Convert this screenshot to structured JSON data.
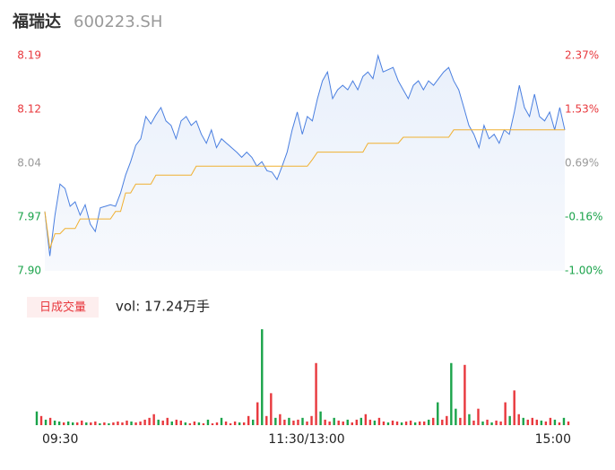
{
  "chart_data": {
    "type": "intraday",
    "title": "福瑞达",
    "subtitle": "600223.SH",
    "ylim": [
      7.9,
      8.19
    ],
    "yticks": [
      {
        "value": 8.19,
        "label": "8.19"
      },
      {
        "value": 8.1175,
        "label": "8.12"
      },
      {
        "value": 8.045,
        "label": "8.04"
      },
      {
        "value": 7.9725,
        "label": "7.97"
      },
      {
        "value": 7.9,
        "label": "7.90"
      }
    ],
    "ytick_colors": [
      "#e8383d",
      "#e8383d",
      "#999999",
      "#1aa34a",
      "#1aa34a"
    ],
    "y2lim": [
      -1.0,
      2.37
    ],
    "y2ticks": [
      {
        "value": 2.37,
        "label": "2.37%"
      },
      {
        "value": 1.5275,
        "label": "1.53%"
      },
      {
        "value": 0.685,
        "label": "0.69%"
      },
      {
        "value": -0.1575,
        "label": "-0.16%"
      },
      {
        "value": -1.0,
        "label": "-1.00%"
      }
    ],
    "xlim": [
      0,
      240
    ],
    "xticks": [
      {
        "value": 0,
        "label": "09:30"
      },
      {
        "value": 120,
        "label": "11:30/13:00"
      },
      {
        "value": 240,
        "label": "15:00"
      }
    ],
    "series": [
      {
        "name": "price",
        "color": "#4a7fe0",
        "values": [
          7.98,
          7.92,
          7.975,
          8.017,
          8.011,
          7.987,
          7.993,
          7.975,
          7.989,
          7.963,
          7.953,
          7.985,
          7.987,
          7.989,
          7.987,
          8.005,
          8.029,
          8.047,
          8.069,
          8.078,
          8.108,
          8.098,
          8.11,
          8.12,
          8.102,
          8.096,
          8.078,
          8.102,
          8.108,
          8.096,
          8.102,
          8.084,
          8.072,
          8.09,
          8.066,
          8.078,
          8.072,
          8.066,
          8.06,
          8.053,
          8.06,
          8.053,
          8.041,
          8.047,
          8.035,
          8.033,
          8.023,
          8.041,
          8.06,
          8.09,
          8.114,
          8.084,
          8.108,
          8.102,
          8.132,
          8.156,
          8.168,
          8.132,
          8.144,
          8.15,
          8.144,
          8.156,
          8.144,
          8.162,
          8.168,
          8.159,
          8.19,
          8.168,
          8.171,
          8.174,
          8.156,
          8.144,
          8.132,
          8.15,
          8.156,
          8.144,
          8.156,
          8.15,
          8.159,
          8.168,
          8.174,
          8.156,
          8.144,
          8.12,
          8.096,
          8.084,
          8.066,
          8.096,
          8.078,
          8.084,
          8.072,
          8.09,
          8.084,
          8.114,
          8.15,
          8.12,
          8.108,
          8.138,
          8.108,
          8.102,
          8.114,
          8.09,
          8.12,
          8.09
        ]
      },
      {
        "name": "average",
        "color": "#f0b030",
        "values": [
          7.98,
          7.93,
          7.95,
          7.95,
          7.957,
          7.957,
          7.957,
          7.97,
          7.97,
          7.97,
          7.97,
          7.97,
          7.97,
          7.97,
          7.98,
          7.98,
          8.005,
          8.005,
          8.017,
          8.017,
          8.017,
          8.017,
          8.029,
          8.029,
          8.029,
          8.029,
          8.029,
          8.029,
          8.029,
          8.029,
          8.041,
          8.041,
          8.041,
          8.041,
          8.041,
          8.041,
          8.041,
          8.041,
          8.041,
          8.041,
          8.041,
          8.041,
          8.041,
          8.041,
          8.041,
          8.041,
          8.041,
          8.041,
          8.041,
          8.041,
          8.041,
          8.041,
          8.041,
          8.05,
          8.06,
          8.06,
          8.06,
          8.06,
          8.06,
          8.06,
          8.06,
          8.06,
          8.06,
          8.06,
          8.072,
          8.072,
          8.072,
          8.072,
          8.072,
          8.072,
          8.072,
          8.08,
          8.08,
          8.08,
          8.08,
          8.08,
          8.08,
          8.08,
          8.08,
          8.08,
          8.08,
          8.09,
          8.09,
          8.09,
          8.09,
          8.09,
          8.09,
          8.09,
          8.09,
          8.09,
          8.09,
          8.09,
          8.09,
          8.09,
          8.09,
          8.09,
          8.09,
          8.09,
          8.09,
          8.09,
          8.09,
          8.09,
          8.09,
          8.09
        ]
      }
    ],
    "volume": {
      "label": "日成交量",
      "text": "vol: 17.24万手",
      "ylim": [
        0,
        110
      ],
      "up_color": "#e8383d",
      "down_color": "#1aa34a",
      "values": [
        15,
        10,
        6,
        8,
        5,
        4,
        3,
        4,
        3,
        3,
        5,
        3,
        3,
        4,
        2,
        3,
        2,
        3,
        4,
        3,
        5,
        4,
        3,
        4,
        6,
        8,
        12,
        6,
        5,
        8,
        4,
        6,
        5,
        3,
        2,
        4,
        3,
        2,
        6,
        2,
        3,
        8,
        4,
        2,
        4,
        3,
        3,
        10,
        6,
        25,
        105,
        10,
        35,
        8,
        12,
        6,
        8,
        5,
        6,
        8,
        4,
        10,
        68,
        15,
        6,
        4,
        8,
        5,
        4,
        6,
        3,
        6,
        8,
        12,
        6,
        5,
        8,
        4,
        3,
        5,
        4,
        3,
        4,
        5,
        3,
        4,
        4,
        6,
        8,
        25,
        6,
        10,
        68,
        18,
        8,
        66,
        12,
        5,
        18,
        4,
        6,
        3,
        5,
        4,
        25,
        10,
        38,
        12,
        8,
        6,
        8,
        6,
        5,
        4,
        8,
        6,
        3,
        8,
        4
      ],
      "up": [
        false,
        true,
        false,
        true,
        false,
        false,
        true,
        false,
        false,
        true,
        true,
        false,
        true,
        true,
        false,
        true,
        false,
        true,
        true,
        true,
        true,
        false,
        true,
        true,
        true,
        true,
        true,
        false,
        true,
        true,
        false,
        true,
        true,
        false,
        true,
        true,
        false,
        true,
        false,
        true,
        true,
        false,
        true,
        true,
        true,
        false,
        true,
        true,
        false,
        true,
        false,
        true,
        true,
        false,
        true,
        true,
        false,
        true,
        true,
        false,
        true,
        true,
        true,
        false,
        true,
        true,
        false,
        true,
        true,
        false,
        true,
        true,
        false,
        true,
        true,
        false,
        true,
        true,
        false,
        true,
        true,
        false,
        true,
        true,
        false,
        true,
        true,
        false,
        true,
        false,
        true,
        true,
        false,
        false,
        true,
        true,
        false,
        true,
        true,
        false,
        true,
        false,
        true,
        true,
        true,
        false,
        true,
        true,
        false,
        true,
        true,
        true,
        false,
        true,
        true,
        false,
        true,
        false,
        true
      ]
    }
  }
}
